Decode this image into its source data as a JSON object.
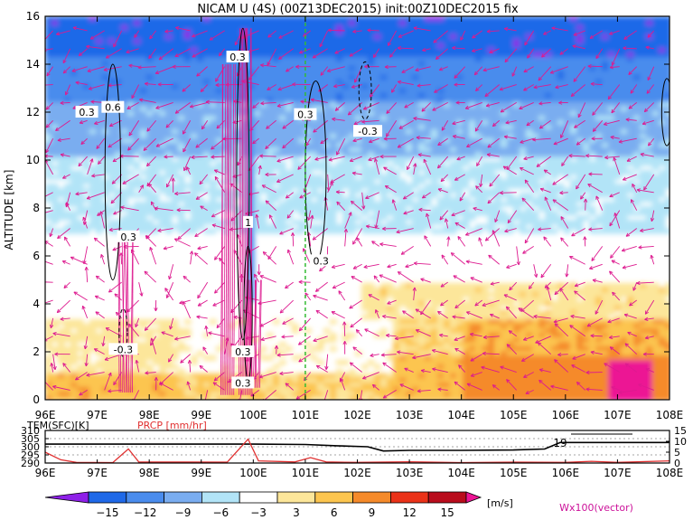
{
  "chart_data": {
    "type": "heatmap",
    "title": "NICAM U (4S)  (00Z13DEC2015)  init:00Z10DEC2015  fix",
    "ylabel": "ALTITUDE [km]",
    "x_ticks": [
      "96E",
      "97E",
      "98E",
      "99E",
      "100E",
      "101E",
      "102E",
      "103E",
      "104E",
      "105E",
      "106E",
      "107E",
      "108E"
    ],
    "x_range": [
      96,
      108
    ],
    "y_ticks": [
      "0",
      "2",
      "4",
      "6",
      "8",
      "10",
      "12",
      "14",
      "16"
    ],
    "y_range": [
      0,
      16
    ],
    "contour_labels": [
      {
        "text": "0.3",
        "lon": 96.8,
        "alt": 12.0
      },
      {
        "text": "0.6",
        "lon": 97.3,
        "alt": 12.2
      },
      {
        "text": "0.3",
        "lon": 97.6,
        "alt": 6.8
      },
      {
        "text": "-0.3",
        "lon": 97.5,
        "alt": 2.1
      },
      {
        "text": "0.3",
        "lon": 99.7,
        "alt": 14.3
      },
      {
        "text": "0.3",
        "lon": 101.0,
        "alt": 11.9
      },
      {
        "text": "-0.3",
        "lon": 102.2,
        "alt": 11.2
      },
      {
        "text": "0.3",
        "lon": 101.3,
        "alt": 5.8
      },
      {
        "text": "1",
        "lon": 99.9,
        "alt": 7.4
      },
      {
        "text": "0.3",
        "lon": 99.8,
        "alt": 2.0
      },
      {
        "text": "0.3",
        "lon": 99.8,
        "alt": 0.7
      }
    ],
    "vertical_line_lon": 101.0,
    "bottom_panel": {
      "temp_label": "TEM(SFC)[K]",
      "precip_label": "PRCP [mm/hr]",
      "left_ticks": [
        "310",
        "305",
        "300",
        "295",
        "290"
      ],
      "left_range": [
        290,
        310
      ],
      "right_ticks": [
        "15",
        "10",
        "5",
        "0"
      ],
      "right_range": [
        0,
        15
      ],
      "annotation": "19",
      "temperature": [
        {
          "lon": 96.0,
          "k": 301.6
        },
        {
          "lon": 100.0,
          "k": 301.6
        },
        {
          "lon": 101.0,
          "k": 301.4
        },
        {
          "lon": 101.6,
          "k": 300.6
        },
        {
          "lon": 102.2,
          "k": 300.0
        },
        {
          "lon": 102.5,
          "k": 297.4
        },
        {
          "lon": 103.0,
          "k": 297.8
        },
        {
          "lon": 104.0,
          "k": 297.8
        },
        {
          "lon": 105.0,
          "k": 298.0
        },
        {
          "lon": 105.6,
          "k": 298.6
        },
        {
          "lon": 105.9,
          "k": 302.6
        },
        {
          "lon": 106.5,
          "k": 302.6
        },
        {
          "lon": 108.0,
          "k": 302.6
        }
      ],
      "precipitation": [
        {
          "lon": 96.0,
          "mm": 5.0
        },
        {
          "lon": 96.3,
          "mm": 1.5
        },
        {
          "lon": 96.6,
          "mm": 0.3
        },
        {
          "lon": 97.3,
          "mm": 0.2
        },
        {
          "lon": 97.6,
          "mm": 6.5
        },
        {
          "lon": 97.8,
          "mm": 0.5
        },
        {
          "lon": 99.5,
          "mm": 0.4
        },
        {
          "lon": 99.9,
          "mm": 11.0
        },
        {
          "lon": 100.1,
          "mm": 1.0
        },
        {
          "lon": 100.8,
          "mm": 0.5
        },
        {
          "lon": 101.1,
          "mm": 2.5
        },
        {
          "lon": 101.4,
          "mm": 0.5
        },
        {
          "lon": 102.0,
          "mm": 0.3
        },
        {
          "lon": 103.0,
          "mm": 0.6
        },
        {
          "lon": 104.0,
          "mm": 0.2
        },
        {
          "lon": 105.0,
          "mm": 0.4
        },
        {
          "lon": 106.0,
          "mm": 0.3
        },
        {
          "lon": 106.5,
          "mm": 0.8
        },
        {
          "lon": 107.0,
          "mm": 0.3
        },
        {
          "lon": 108.0,
          "mm": 1.0
        }
      ]
    },
    "colorbar": {
      "ticks": [
        "-15",
        "-12",
        "-9",
        "-6",
        "-3",
        "3",
        "6",
        "9",
        "12",
        "15"
      ],
      "colors": [
        "#8e20e8",
        "#1f69e8",
        "#4a8ced",
        "#7aadf0",
        "#b2e4f7",
        "#ffffff",
        "#fce69a",
        "#fcc54f",
        "#f58a2a",
        "#ea3218",
        "#b90c1c",
        "#ec1494"
      ],
      "unit": "[m/s]",
      "vector_label": "Wx100(vector)"
    }
  }
}
